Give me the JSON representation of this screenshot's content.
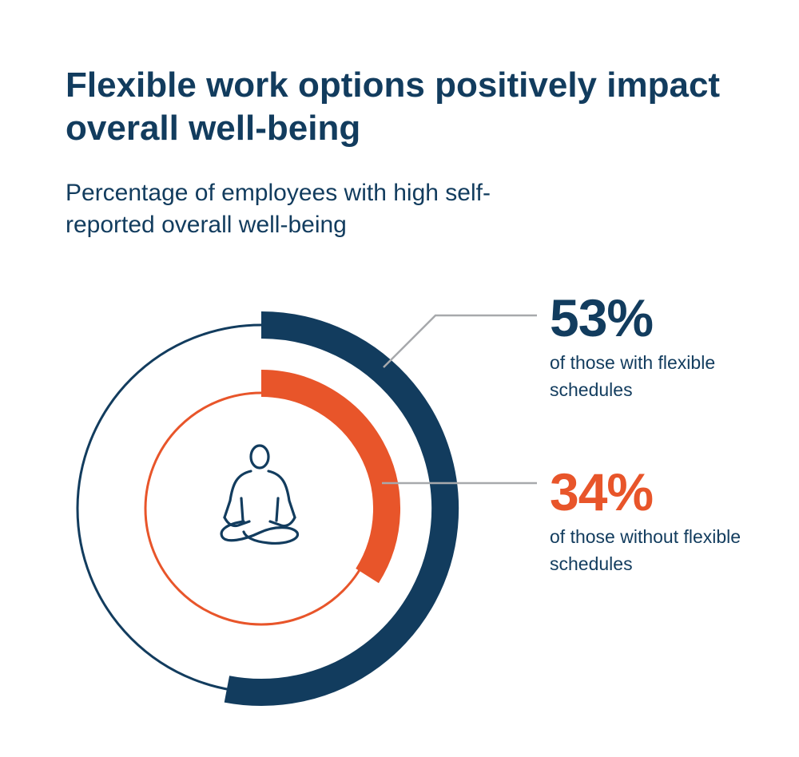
{
  "title": "Flexible work options positively impact overall well-being",
  "subtitle": "Percentage of employees with high self-reported overall well-being",
  "colors": {
    "navy": "#123c5e",
    "orange": "#e8552a",
    "connector": "#a7a9ac"
  },
  "icon": "meditation-person-icon",
  "stats": [
    {
      "value": "53%",
      "label": "of those with flexible schedules",
      "color": "#123c5e"
    },
    {
      "value": "34%",
      "label": "of those without flexible schedules",
      "color": "#e8552a"
    }
  ],
  "chart_data": {
    "type": "radial-bar",
    "unit": "%",
    "max": 100,
    "categories": [
      "with flexible schedules",
      "without flexible schedules"
    ],
    "values": [
      53,
      34
    ]
  }
}
